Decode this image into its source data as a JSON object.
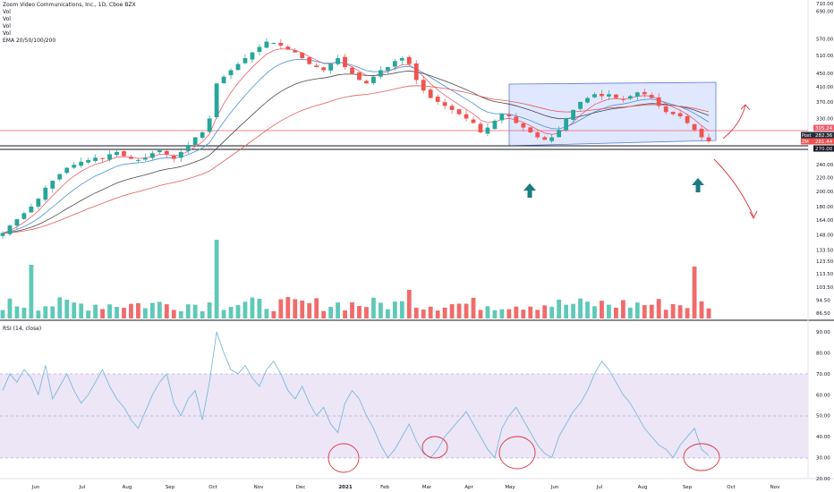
{
  "legend": {
    "title": "Zoom Video Communications, Inc., 1D, Cboe BZX",
    "vol_lines": [
      "Vol",
      "Vol",
      "Vol",
      "Vol"
    ],
    "ema": "EMA 20/50/100/200"
  },
  "rsi_title": "RSI (14, close)",
  "price_axis": {
    "ticks": [
      "710.00",
      "690.00",
      "570.00",
      "510.00",
      "450.00",
      "410.00",
      "370.00",
      "330.00",
      "305.24",
      "282.36",
      "281.44",
      "270.00",
      "240.00",
      "220.00",
      "200.00",
      "180.00",
      "164.00",
      "148.00",
      "133.50",
      "123.50",
      "113.50",
      "103.50",
      "94.50",
      "86.50"
    ],
    "top_clip": "710.00",
    "badges": [
      {
        "label": "Post",
        "value": "282.36",
        "color": "#2a2e39"
      },
      {
        "label": "ZM",
        "value": "281.44",
        "color": "#ef5350"
      },
      {
        "label": "",
        "value": "305.24",
        "color": "#f05b6e"
      },
      {
        "label": "",
        "value": "270.00",
        "color": "#131722"
      }
    ]
  },
  "rsi_axis": {
    "ticks": [
      "90.00",
      "80.00",
      "70.00",
      "60.00",
      "50.00",
      "40.00",
      "30.00",
      "20.00"
    ]
  },
  "time_axis": {
    "labels": [
      "Jun",
      "Jul",
      "Aug",
      "Sep",
      "Oct",
      "Nov",
      "Dec",
      "2021",
      "Feb",
      "Mar",
      "Apr",
      "May",
      "Jun",
      "Jul",
      "Aug",
      "Sep",
      "Oct",
      "Nov"
    ]
  },
  "chart_data": [
    {
      "type": "line",
      "title": "Zoom Video Communications, Inc., 1D, Cboe BZX",
      "series": [
        {
          "name": "ZM",
          "values": [
            150,
            158,
            165,
            172,
            180,
            190,
            205,
            215,
            225,
            235,
            240,
            245,
            248,
            252,
            250,
            258,
            262,
            255,
            250,
            248,
            252,
            260,
            265,
            258,
            250,
            262,
            275,
            290,
            300,
            330,
            420,
            440,
            460,
            480,
            500,
            520,
            540,
            560,
            555,
            545,
            530,
            520,
            500,
            480,
            470,
            460,
            480,
            500,
            470,
            450,
            430,
            420,
            440,
            460,
            470,
            490,
            500,
            480,
            430,
            400,
            380,
            370,
            360,
            350,
            340,
            330,
            320,
            300,
            310,
            325,
            340,
            335,
            320,
            310,
            300,
            290,
            285,
            290,
            305,
            330,
            350,
            370,
            380,
            390,
            385,
            390,
            380,
            375,
            385,
            395,
            390,
            380,
            360,
            345,
            340,
            335,
            320,
            305,
            290,
            282
          ]
        },
        {
          "name": "EMA 20",
          "color": "#f05b6e"
        },
        {
          "name": "EMA 50",
          "color": "#4a90d9"
        },
        {
          "name": "EMA 100",
          "color": "#4a4a4a"
        },
        {
          "name": "EMA 200",
          "color": "#e35b5b"
        }
      ],
      "ylim": [
        86.5,
        710
      ],
      "log_scale": true,
      "horizontal_levels": [
        305.24,
        270.0
      ],
      "annotations": [
        "channel box",
        "up arrows x2",
        "projected zig-zag"
      ]
    },
    {
      "type": "bar",
      "title": "Vol",
      "note": "volume histogram, green = up day, red = down day"
    },
    {
      "type": "line",
      "title": "RSI (14, close)",
      "ylim": [
        20,
        90
      ],
      "bands": [
        30,
        50,
        70
      ],
      "values": [
        62,
        70,
        66,
        72,
        68,
        60,
        74,
        58,
        64,
        70,
        62,
        56,
        60,
        66,
        72,
        64,
        58,
        54,
        48,
        44,
        52,
        60,
        66,
        70,
        56,
        50,
        58,
        62,
        48,
        66,
        90,
        80,
        72,
        70,
        74,
        68,
        64,
        72,
        76,
        70,
        62,
        58,
        64,
        56,
        50,
        54,
        46,
        42,
        56,
        62,
        58,
        50,
        44,
        36,
        30,
        34,
        40,
        46,
        38,
        32,
        30,
        34,
        40,
        44,
        48,
        52,
        46,
        40,
        34,
        30,
        44,
        50,
        54,
        48,
        42,
        36,
        32,
        30,
        40,
        46,
        52,
        56,
        62,
        70,
        76,
        72,
        66,
        60,
        56,
        50,
        44,
        40,
        36,
        34,
        30,
        36,
        40,
        44,
        34,
        31
      ]
    }
  ],
  "colors": {
    "up": "#26a69a",
    "down": "#ef5350",
    "rsi": "#7fb8d9",
    "band": "#ece6f7",
    "box": "#c8d8ff"
  }
}
